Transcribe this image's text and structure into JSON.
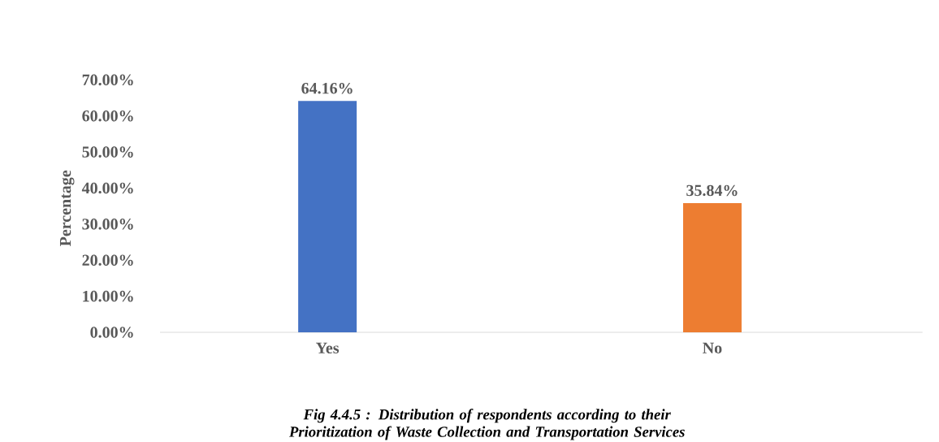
{
  "chart_data": {
    "type": "bar",
    "ylabel": "Percentage",
    "categories": [
      "Yes",
      "No"
    ],
    "values": [
      64.16,
      35.84
    ],
    "colors": [
      "#4472c4",
      "#ed7d31"
    ],
    "value_labels": [
      "64.16%",
      "35.84%"
    ],
    "ylim": [
      0,
      70
    ],
    "yticks": [
      {
        "value": 0,
        "label": "0.00%"
      },
      {
        "value": 10,
        "label": "10.00%"
      },
      {
        "value": 20,
        "label": "20.00%"
      },
      {
        "value": 30,
        "label": "30.00%"
      },
      {
        "value": 40,
        "label": "40.00%"
      },
      {
        "value": 50,
        "label": "50.00%"
      },
      {
        "value": 60,
        "label": "60.00%"
      },
      {
        "value": 70,
        "label": "70.00%"
      }
    ],
    "grid": false,
    "annotations": [
      "Fig 4.4.5 : Distribution of respondents according to their Prioritization of Waste Collection and Transportation Services"
    ]
  }
}
